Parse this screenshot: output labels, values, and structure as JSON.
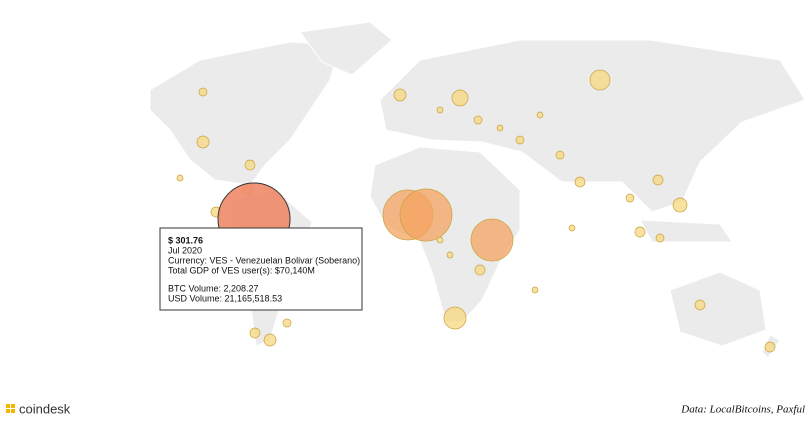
{
  "tooltip": {
    "price": "$ 301.76",
    "date": "Jul 2020",
    "currency": "Currency: VES - Venezuelan Bolivar (Soberano)",
    "gdp": "Total GDP of VES user(s): $70,140M",
    "btc_volume": "BTC Volume: 2,208.27",
    "usd_volume": "USD Volume: 21,165,518.53"
  },
  "footer": {
    "logo": "coindesk",
    "source": "Data: LocalBitcoins, Paxful"
  }
}
